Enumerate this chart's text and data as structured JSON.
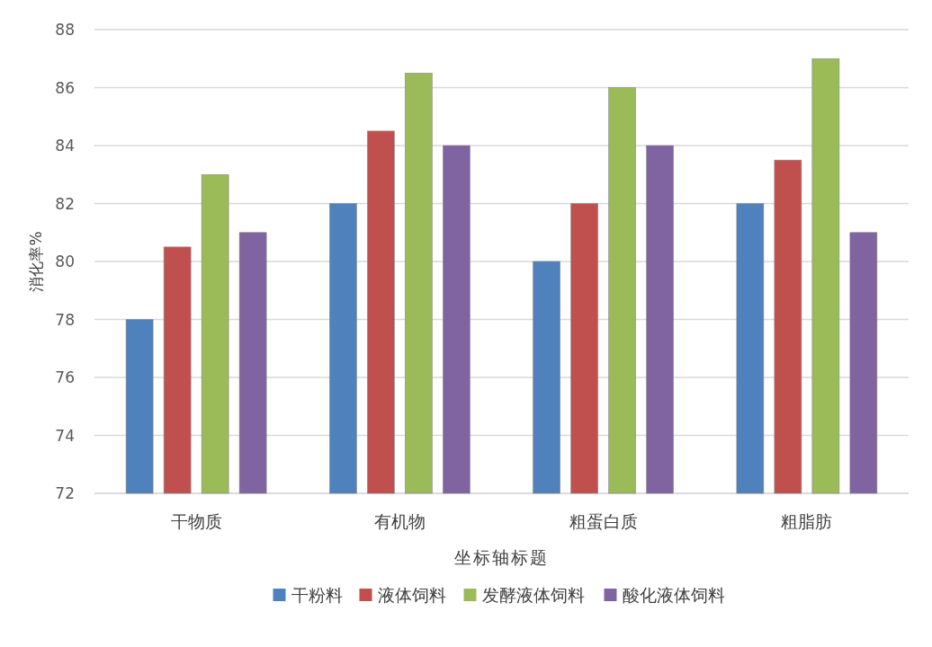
{
  "chart_data": {
    "type": "bar",
    "xlabel": "坐标轴标题",
    "ylabel": "消化率%",
    "categories": [
      "干物质",
      "有机物",
      "粗蛋白质",
      "粗脂肪"
    ],
    "series": [
      {
        "name": "干粉料",
        "color": "#4f81bd",
        "values": [
          78,
          82,
          80,
          82
        ]
      },
      {
        "name": "液体饲料",
        "color": "#c0504d",
        "values": [
          80.5,
          84.5,
          82,
          83.5
        ]
      },
      {
        "name": "发酵液体饲料",
        "color": "#9bbb59",
        "values": [
          83,
          86.5,
          86,
          87
        ]
      },
      {
        "name": "酸化液体饲料",
        "color": "#8064a2",
        "values": [
          81,
          84,
          84,
          81
        ]
      }
    ],
    "ylim": [
      72,
      88
    ],
    "yticks": [
      72,
      74,
      76,
      78,
      80,
      82,
      84,
      86,
      88
    ],
    "grid": "y",
    "legend": "bottom"
  }
}
